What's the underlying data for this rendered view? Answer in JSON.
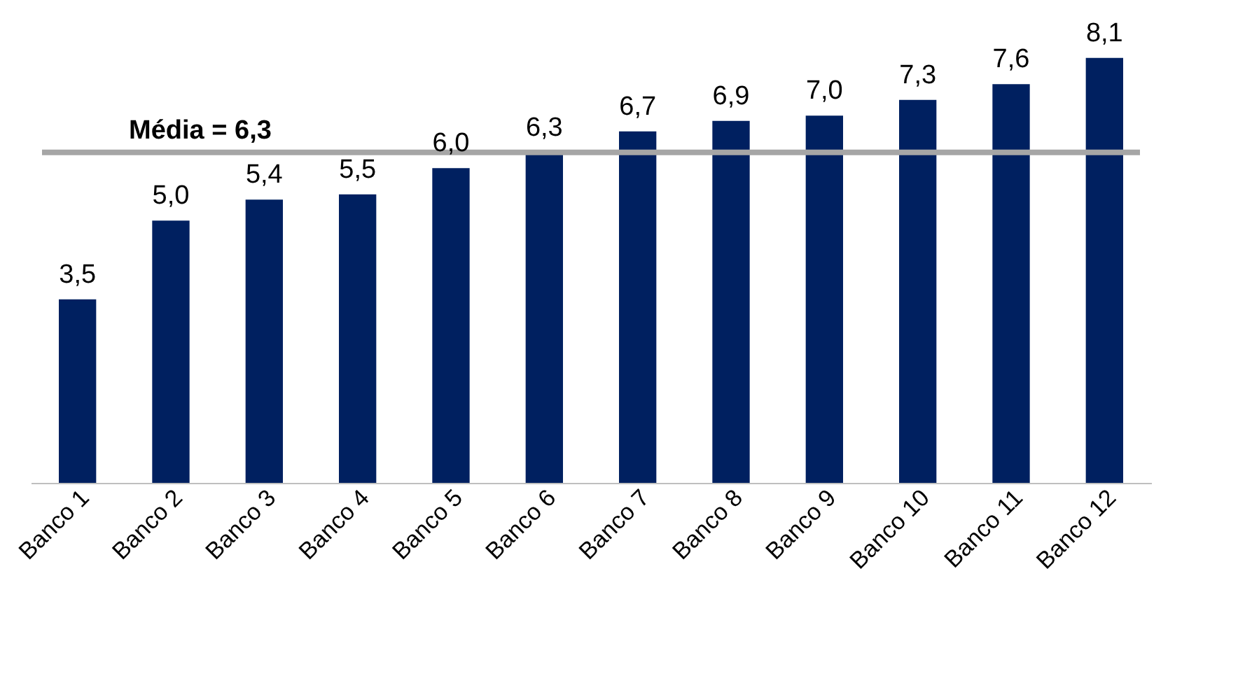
{
  "chart_data": {
    "type": "bar",
    "categories": [
      "Banco 1",
      "Banco 2",
      "Banco 3",
      "Banco 4",
      "Banco 5",
      "Banco 6",
      "Banco 7",
      "Banco 8",
      "Banco 9",
      "Banco 10",
      "Banco 11",
      "Banco 12"
    ],
    "values": [
      3.5,
      5.0,
      5.4,
      5.5,
      6.0,
      6.3,
      6.7,
      6.9,
      7.0,
      7.3,
      7.6,
      8.1
    ],
    "value_labels": [
      "3,5",
      "5,0",
      "5,4",
      "5,5",
      "6,0",
      "6,3",
      "6,7",
      "6,9",
      "7,0",
      "7,3",
      "7,6",
      "8,1"
    ],
    "color": "#002060",
    "ref_lines": [
      {
        "axis": "y",
        "value": 6.3,
        "label": "Média =  6,3",
        "color": "#a6a6a6"
      }
    ],
    "grid": false
  }
}
